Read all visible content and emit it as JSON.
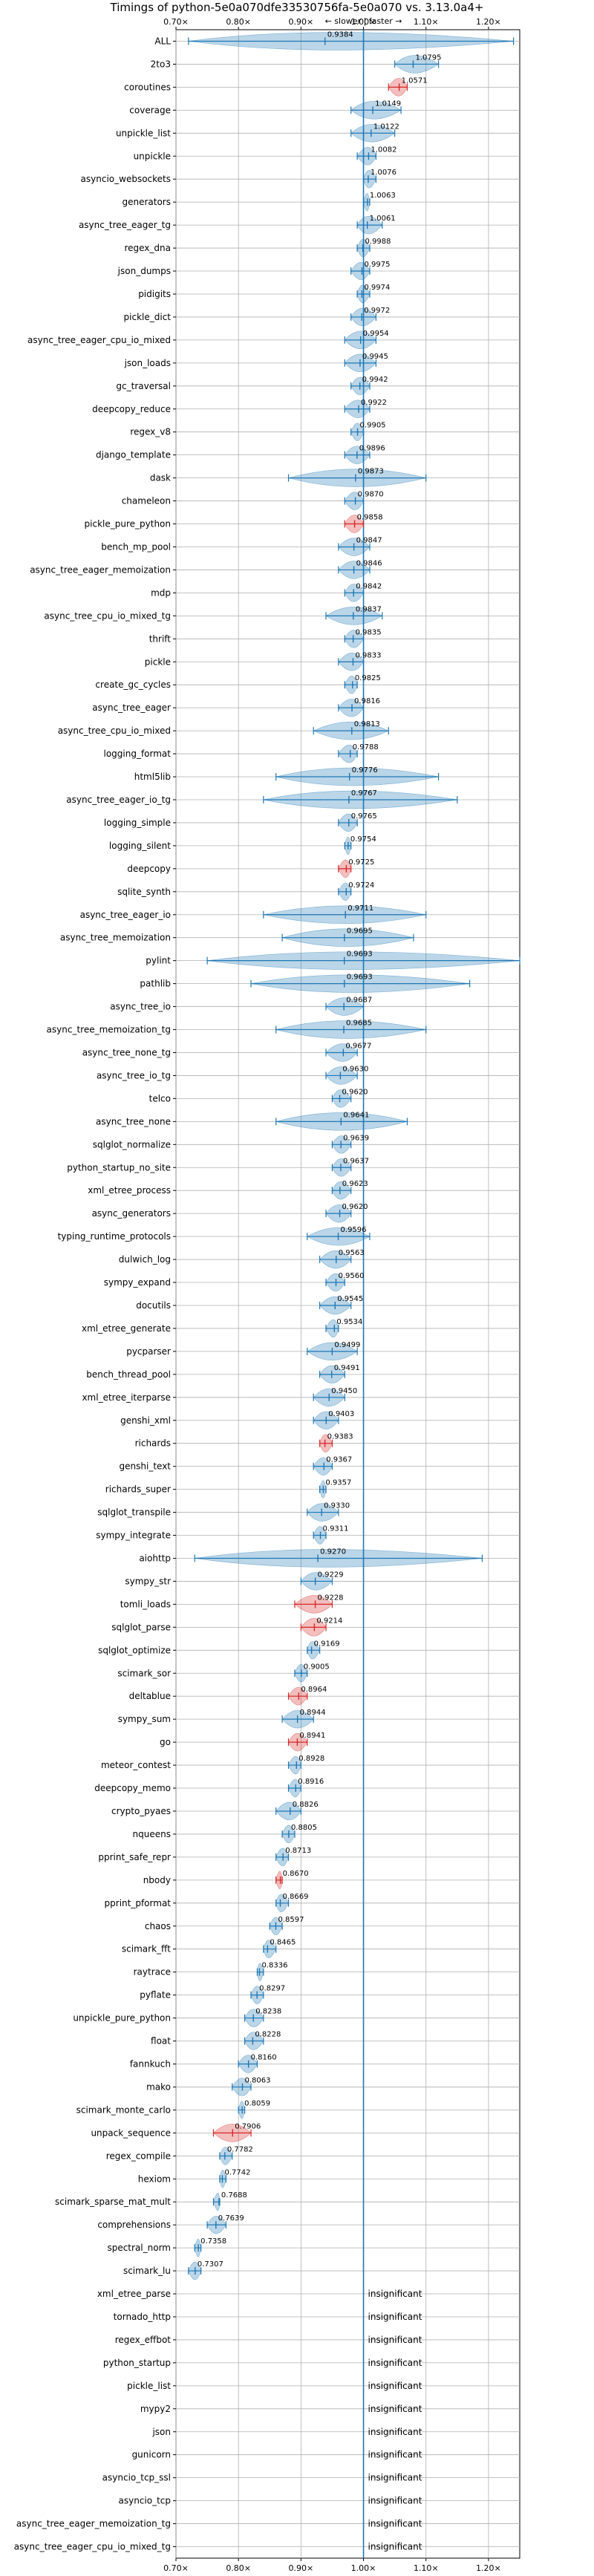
{
  "chart_data": {
    "type": "violin",
    "title": "Timings of python-5e0a070dfe33530756fa-5e0a070 vs. 3.13.0a4+",
    "direction_label": "← slower | faster →",
    "xticks": [
      "0.70×",
      "0.80×",
      "0.90×",
      "1.00×",
      "1.10×",
      "1.20×"
    ],
    "xtick_values": [
      0.7,
      0.8,
      0.9,
      1.0,
      1.1,
      1.2
    ],
    "xlim": [
      0.7,
      1.25
    ],
    "reference_line": 1.0,
    "grid": true,
    "significant": [
      {
        "name": "ALL",
        "value": 0.9384,
        "label": "0.9384",
        "min": 0.72,
        "max": 1.24,
        "color": "blue"
      },
      {
        "name": "2to3",
        "value": 1.0795,
        "label": "1.0795",
        "min": 1.05,
        "max": 1.12,
        "color": "blue"
      },
      {
        "name": "coroutines",
        "value": 1.0571,
        "label": "1.0571",
        "min": 1.04,
        "max": 1.07,
        "color": "red"
      },
      {
        "name": "coverage",
        "value": 1.0149,
        "label": "1.0149",
        "min": 0.98,
        "max": 1.06,
        "color": "blue"
      },
      {
        "name": "unpickle_list",
        "value": 1.0122,
        "label": "1.0122",
        "min": 0.98,
        "max": 1.05,
        "color": "blue"
      },
      {
        "name": "unpickle",
        "value": 1.0082,
        "label": "1.0082",
        "min": 0.99,
        "max": 1.02,
        "color": "blue"
      },
      {
        "name": "asyncio_websockets",
        "value": 1.0076,
        "label": "1.0076",
        "min": 1.0,
        "max": 1.02,
        "color": "blue"
      },
      {
        "name": "generators",
        "value": 1.0063,
        "label": "1.0063",
        "min": 1.0,
        "max": 1.01,
        "color": "blue"
      },
      {
        "name": "async_tree_eager_tg",
        "value": 1.0061,
        "label": "1.0061",
        "min": 0.99,
        "max": 1.03,
        "color": "blue"
      },
      {
        "name": "regex_dna",
        "value": 0.9988,
        "label": "0.9988",
        "min": 0.99,
        "max": 1.01,
        "color": "blue"
      },
      {
        "name": "json_dumps",
        "value": 0.9975,
        "label": "0.9975",
        "min": 0.98,
        "max": 1.01,
        "color": "blue"
      },
      {
        "name": "pidigits",
        "value": 0.9974,
        "label": "0.9974",
        "min": 0.99,
        "max": 1.01,
        "color": "blue"
      },
      {
        "name": "pickle_dict",
        "value": 0.9972,
        "label": "0.9972",
        "min": 0.98,
        "max": 1.02,
        "color": "blue"
      },
      {
        "name": "async_tree_eager_cpu_io_mixed",
        "value": 0.9954,
        "label": "0.9954",
        "min": 0.97,
        "max": 1.02,
        "color": "blue"
      },
      {
        "name": "json_loads",
        "value": 0.9945,
        "label": "0.9945",
        "min": 0.97,
        "max": 1.02,
        "color": "blue"
      },
      {
        "name": "gc_traversal",
        "value": 0.9942,
        "label": "0.9942",
        "min": 0.98,
        "max": 1.01,
        "color": "blue"
      },
      {
        "name": "deepcopy_reduce",
        "value": 0.9922,
        "label": "0.9922",
        "min": 0.97,
        "max": 1.01,
        "color": "blue"
      },
      {
        "name": "regex_v8",
        "value": 0.9905,
        "label": "0.9905",
        "min": 0.98,
        "max": 1.0,
        "color": "blue"
      },
      {
        "name": "django_template",
        "value": 0.9896,
        "label": "0.9896",
        "min": 0.97,
        "max": 1.01,
        "color": "blue"
      },
      {
        "name": "dask",
        "value": 0.9873,
        "label": "0.9873",
        "min": 0.88,
        "max": 1.1,
        "color": "blue"
      },
      {
        "name": "chameleon",
        "value": 0.987,
        "label": "0.9870",
        "min": 0.97,
        "max": 1.0,
        "color": "blue"
      },
      {
        "name": "pickle_pure_python",
        "value": 0.9858,
        "label": "0.9858",
        "min": 0.97,
        "max": 1.0,
        "color": "red"
      },
      {
        "name": "bench_mp_pool",
        "value": 0.9847,
        "label": "0.9847",
        "min": 0.96,
        "max": 1.01,
        "color": "blue"
      },
      {
        "name": "async_tree_eager_memoization",
        "value": 0.9846,
        "label": "0.9846",
        "min": 0.96,
        "max": 1.01,
        "color": "blue"
      },
      {
        "name": "mdp",
        "value": 0.9842,
        "label": "0.9842",
        "min": 0.97,
        "max": 1.0,
        "color": "blue"
      },
      {
        "name": "async_tree_cpu_io_mixed_tg",
        "value": 0.9837,
        "label": "0.9837",
        "min": 0.94,
        "max": 1.03,
        "color": "blue"
      },
      {
        "name": "thrift",
        "value": 0.9835,
        "label": "0.9835",
        "min": 0.97,
        "max": 1.0,
        "color": "blue"
      },
      {
        "name": "pickle",
        "value": 0.9833,
        "label": "0.9833",
        "min": 0.96,
        "max": 1.0,
        "color": "blue"
      },
      {
        "name": "create_gc_cycles",
        "value": 0.9825,
        "label": "0.9825",
        "min": 0.97,
        "max": 0.99,
        "color": "blue"
      },
      {
        "name": "async_tree_eager",
        "value": 0.9816,
        "label": "0.9816",
        "min": 0.96,
        "max": 1.0,
        "color": "blue"
      },
      {
        "name": "async_tree_cpu_io_mixed",
        "value": 0.9813,
        "label": "0.9813",
        "min": 0.92,
        "max": 1.04,
        "color": "blue"
      },
      {
        "name": "logging_format",
        "value": 0.9788,
        "label": "0.9788",
        "min": 0.96,
        "max": 0.99,
        "color": "blue"
      },
      {
        "name": "html5lib",
        "value": 0.9776,
        "label": "0.9776",
        "min": 0.86,
        "max": 1.12,
        "color": "blue"
      },
      {
        "name": "async_tree_eager_io_tg",
        "value": 0.9767,
        "label": "0.9767",
        "min": 0.84,
        "max": 1.15,
        "color": "blue"
      },
      {
        "name": "logging_simple",
        "value": 0.9765,
        "label": "0.9765",
        "min": 0.96,
        "max": 0.99,
        "color": "blue"
      },
      {
        "name": "logging_silent",
        "value": 0.9754,
        "label": "0.9754",
        "min": 0.97,
        "max": 0.98,
        "color": "blue"
      },
      {
        "name": "deepcopy",
        "value": 0.9725,
        "label": "0.9725",
        "min": 0.96,
        "max": 0.98,
        "color": "red"
      },
      {
        "name": "sqlite_synth",
        "value": 0.9724,
        "label": "0.9724",
        "min": 0.96,
        "max": 0.98,
        "color": "blue"
      },
      {
        "name": "async_tree_eager_io",
        "value": 0.9711,
        "label": "0.9711",
        "min": 0.84,
        "max": 1.1,
        "color": "blue"
      },
      {
        "name": "async_tree_memoization",
        "value": 0.9695,
        "label": "0.9695",
        "min": 0.87,
        "max": 1.08,
        "color": "blue"
      },
      {
        "name": "pylint",
        "value": 0.9693,
        "label": "0.9693",
        "min": 0.75,
        "max": 1.25,
        "color": "blue"
      },
      {
        "name": "pathlib",
        "value": 0.9693,
        "label": "0.9693",
        "min": 0.82,
        "max": 1.17,
        "color": "blue"
      },
      {
        "name": "async_tree_io",
        "value": 0.9687,
        "label": "0.9687",
        "min": 0.94,
        "max": 1.0,
        "color": "blue"
      },
      {
        "name": "async_tree_memoization_tg",
        "value": 0.9685,
        "label": "0.9685",
        "min": 0.86,
        "max": 1.1,
        "color": "blue"
      },
      {
        "name": "async_tree_none_tg",
        "value": 0.9677,
        "label": "0.9677",
        "min": 0.94,
        "max": 0.99,
        "color": "blue"
      },
      {
        "name": "async_tree_io_tg",
        "value": 0.963,
        "label": "0.9630",
        "min": 0.94,
        "max": 0.99,
        "color": "blue"
      },
      {
        "name": "telco",
        "value": 0.962,
        "label": "0.9620",
        "min": 0.95,
        "max": 0.98,
        "color": "blue"
      },
      {
        "name": "async_tree_none",
        "value": 0.9641,
        "label": "0.9641",
        "min": 0.86,
        "max": 1.07,
        "color": "blue"
      },
      {
        "name": "sqlglot_normalize",
        "value": 0.9639,
        "label": "0.9639",
        "min": 0.95,
        "max": 0.98,
        "color": "blue"
      },
      {
        "name": "python_startup_no_site",
        "value": 0.9637,
        "label": "0.9637",
        "min": 0.95,
        "max": 0.98,
        "color": "blue"
      },
      {
        "name": "xml_etree_process",
        "value": 0.9623,
        "label": "0.9623",
        "min": 0.95,
        "max": 0.98,
        "color": "blue"
      },
      {
        "name": "async_generators",
        "value": 0.962,
        "label": "0.9620",
        "min": 0.94,
        "max": 0.98,
        "color": "blue"
      },
      {
        "name": "typing_runtime_protocols",
        "value": 0.9596,
        "label": "0.9596",
        "min": 0.91,
        "max": 1.01,
        "color": "blue"
      },
      {
        "name": "dulwich_log",
        "value": 0.9563,
        "label": "0.9563",
        "min": 0.93,
        "max": 0.98,
        "color": "blue"
      },
      {
        "name": "sympy_expand",
        "value": 0.956,
        "label": "0.9560",
        "min": 0.94,
        "max": 0.97,
        "color": "blue"
      },
      {
        "name": "docutils",
        "value": 0.9545,
        "label": "0.9545",
        "min": 0.93,
        "max": 0.98,
        "color": "blue"
      },
      {
        "name": "xml_etree_generate",
        "value": 0.9534,
        "label": "0.9534",
        "min": 0.94,
        "max": 0.96,
        "color": "blue"
      },
      {
        "name": "pycparser",
        "value": 0.9499,
        "label": "0.9499",
        "min": 0.91,
        "max": 0.99,
        "color": "blue"
      },
      {
        "name": "bench_thread_pool",
        "value": 0.9491,
        "label": "0.9491",
        "min": 0.93,
        "max": 0.97,
        "color": "blue"
      },
      {
        "name": "xml_etree_iterparse",
        "value": 0.945,
        "label": "0.9450",
        "min": 0.92,
        "max": 0.97,
        "color": "blue"
      },
      {
        "name": "genshi_xml",
        "value": 0.9403,
        "label": "0.9403",
        "min": 0.92,
        "max": 0.96,
        "color": "blue"
      },
      {
        "name": "richards",
        "value": 0.9383,
        "label": "0.9383",
        "min": 0.93,
        "max": 0.95,
        "color": "red"
      },
      {
        "name": "genshi_text",
        "value": 0.9367,
        "label": "0.9367",
        "min": 0.92,
        "max": 0.95,
        "color": "blue"
      },
      {
        "name": "richards_super",
        "value": 0.9357,
        "label": "0.9357",
        "min": 0.93,
        "max": 0.94,
        "color": "blue"
      },
      {
        "name": "sqlglot_transpile",
        "value": 0.933,
        "label": "0.9330",
        "min": 0.91,
        "max": 0.96,
        "color": "blue"
      },
      {
        "name": "sympy_integrate",
        "value": 0.9311,
        "label": "0.9311",
        "min": 0.92,
        "max": 0.94,
        "color": "blue"
      },
      {
        "name": "aiohttp",
        "value": 0.927,
        "label": "0.9270",
        "min": 0.73,
        "max": 1.19,
        "color": "blue"
      },
      {
        "name": "sympy_str",
        "value": 0.9229,
        "label": "0.9229",
        "min": 0.9,
        "max": 0.95,
        "color": "blue"
      },
      {
        "name": "tomli_loads",
        "value": 0.9228,
        "label": "0.9228",
        "min": 0.89,
        "max": 0.95,
        "color": "red"
      },
      {
        "name": "sqlglot_parse",
        "value": 0.9214,
        "label": "0.9214",
        "min": 0.9,
        "max": 0.94,
        "color": "red"
      },
      {
        "name": "sqlglot_optimize",
        "value": 0.9169,
        "label": "0.9169",
        "min": 0.91,
        "max": 0.93,
        "color": "blue"
      },
      {
        "name": "scimark_sor",
        "value": 0.9005,
        "label": "0.9005",
        "min": 0.89,
        "max": 0.91,
        "color": "blue"
      },
      {
        "name": "deltablue",
        "value": 0.8964,
        "label": "0.8964",
        "min": 0.88,
        "max": 0.91,
        "color": "red"
      },
      {
        "name": "sympy_sum",
        "value": 0.8944,
        "label": "0.8944",
        "min": 0.87,
        "max": 0.92,
        "color": "blue"
      },
      {
        "name": "go",
        "value": 0.8941,
        "label": "0.8941",
        "min": 0.88,
        "max": 0.91,
        "color": "red"
      },
      {
        "name": "meteor_contest",
        "value": 0.8928,
        "label": "0.8928",
        "min": 0.88,
        "max": 0.9,
        "color": "blue"
      },
      {
        "name": "deepcopy_memo",
        "value": 0.8916,
        "label": "0.8916",
        "min": 0.88,
        "max": 0.9,
        "color": "blue"
      },
      {
        "name": "crypto_pyaes",
        "value": 0.8826,
        "label": "0.8826",
        "min": 0.86,
        "max": 0.9,
        "color": "blue"
      },
      {
        "name": "nqueens",
        "value": 0.8805,
        "label": "0.8805",
        "min": 0.87,
        "max": 0.89,
        "color": "blue"
      },
      {
        "name": "pprint_safe_repr",
        "value": 0.8713,
        "label": "0.8713",
        "min": 0.86,
        "max": 0.88,
        "color": "blue"
      },
      {
        "name": "nbody",
        "value": 0.867,
        "label": "0.8670",
        "min": 0.86,
        "max": 0.87,
        "color": "red"
      },
      {
        "name": "pprint_pformat",
        "value": 0.8669,
        "label": "0.8669",
        "min": 0.86,
        "max": 0.88,
        "color": "blue"
      },
      {
        "name": "chaos",
        "value": 0.8597,
        "label": "0.8597",
        "min": 0.85,
        "max": 0.87,
        "color": "blue"
      },
      {
        "name": "scimark_fft",
        "value": 0.8465,
        "label": "0.8465",
        "min": 0.84,
        "max": 0.86,
        "color": "blue"
      },
      {
        "name": "raytrace",
        "value": 0.8336,
        "label": "0.8336",
        "min": 0.83,
        "max": 0.84,
        "color": "blue"
      },
      {
        "name": "pyflate",
        "value": 0.8297,
        "label": "0.8297",
        "min": 0.82,
        "max": 0.84,
        "color": "blue"
      },
      {
        "name": "unpickle_pure_python",
        "value": 0.8238,
        "label": "0.8238",
        "min": 0.81,
        "max": 0.84,
        "color": "blue"
      },
      {
        "name": "float",
        "value": 0.8228,
        "label": "0.8228",
        "min": 0.81,
        "max": 0.84,
        "color": "blue"
      },
      {
        "name": "fannkuch",
        "value": 0.816,
        "label": "0.8160",
        "min": 0.8,
        "max": 0.83,
        "color": "blue"
      },
      {
        "name": "mako",
        "value": 0.8063,
        "label": "0.8063",
        "min": 0.79,
        "max": 0.82,
        "color": "blue"
      },
      {
        "name": "scimark_monte_carlo",
        "value": 0.8059,
        "label": "0.8059",
        "min": 0.8,
        "max": 0.81,
        "color": "blue"
      },
      {
        "name": "unpack_sequence",
        "value": 0.7906,
        "label": "0.7906",
        "min": 0.76,
        "max": 0.82,
        "color": "red"
      },
      {
        "name": "regex_compile",
        "value": 0.7782,
        "label": "0.7782",
        "min": 0.77,
        "max": 0.79,
        "color": "blue"
      },
      {
        "name": "hexiom",
        "value": 0.7742,
        "label": "0.7742",
        "min": 0.77,
        "max": 0.78,
        "color": "blue"
      },
      {
        "name": "scimark_sparse_mat_mult",
        "value": 0.7688,
        "label": "0.7688",
        "min": 0.76,
        "max": 0.77,
        "color": "blue"
      },
      {
        "name": "comprehensions",
        "value": 0.7639,
        "label": "0.7639",
        "min": 0.75,
        "max": 0.78,
        "color": "blue"
      },
      {
        "name": "spectral_norm",
        "value": 0.7358,
        "label": "0.7358",
        "min": 0.73,
        "max": 0.74,
        "color": "blue"
      },
      {
        "name": "scimark_lu",
        "value": 0.7307,
        "label": "0.7307",
        "min": 0.72,
        "max": 0.74,
        "color": "blue"
      }
    ],
    "insignificant": [
      "xml_etree_parse",
      "tornado_http",
      "regex_effbot",
      "python_startup",
      "pickle_list",
      "mypy2",
      "json",
      "gunicorn",
      "asyncio_tcp_ssl",
      "asyncio_tcp",
      "async_tree_eager_memoization_tg",
      "async_tree_eager_cpu_io_mixed_tg"
    ],
    "insignificant_label": "insignificant",
    "colors": {
      "violin_blue": "#1f77b4",
      "violin_red": "#d62728",
      "grid": "#b0b0b0",
      "reference_line": "#1f77b4"
    }
  }
}
